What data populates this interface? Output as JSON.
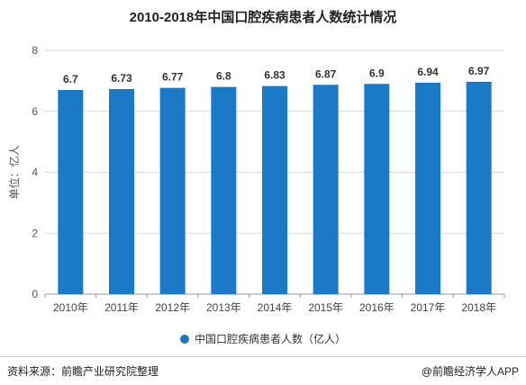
{
  "title": "2010-2018年中国口腔疾病患者人数统计情况",
  "legend_label": "中国口腔疾病患者人数（亿人）",
  "source": "资料来源：前瞻产业研究院整理",
  "credit": "@前瞻经济学人APP",
  "colors": {
    "bar": "#1a7ac8",
    "grid": "#d9d9d9",
    "axis": "#999999"
  },
  "chart_data": {
    "type": "bar",
    "categories": [
      "2010年",
      "2011年",
      "2012年",
      "2013年",
      "2014年",
      "2015年",
      "2016年",
      "2017年",
      "2018年"
    ],
    "series": [
      {
        "name": "中国口腔疾病患者人数（亿人）",
        "values": [
          6.7,
          6.73,
          6.77,
          6.8,
          6.83,
          6.87,
          6.9,
          6.94,
          6.97
        ]
      }
    ],
    "data_labels": [
      "6.7",
      "6.73",
      "6.77",
      "6.8",
      "6.83",
      "6.87",
      "6.9",
      "6.94",
      "6.97"
    ],
    "ylabel": "单位：亿人",
    "ylim": [
      0,
      8
    ],
    "yticks": [
      "0",
      "2",
      "4",
      "6",
      "8"
    ],
    "grid": true,
    "legend_position": "bottom"
  }
}
